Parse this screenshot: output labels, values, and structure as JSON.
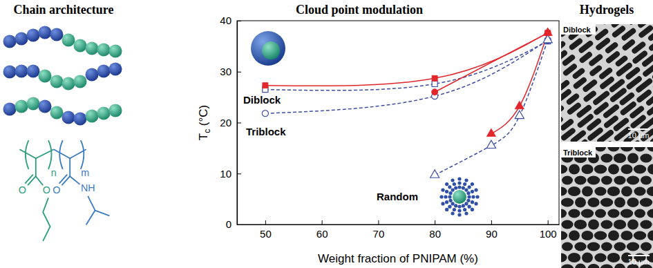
{
  "chart_data": {
    "type": "line",
    "title": "Cloud point modulation",
    "xlabel": "Weight fraction of PNIPAM (%)",
    "ylabel": {
      "text": "T",
      "subscript": "c",
      "suffix": " (°C)"
    },
    "xlim": [
      45,
      102
    ],
    "xticks": [
      50,
      60,
      70,
      80,
      90,
      100
    ],
    "ylim": [
      0,
      40
    ],
    "yticks": [
      0,
      10,
      20,
      30,
      40
    ],
    "annotations": [
      "Diblock",
      "Triblock",
      "Random"
    ],
    "series": [
      {
        "x": [
          50,
          80,
          100
        ],
        "values": [
          26.5,
          27.6,
          36.0
        ],
        "color": "#3b4ea3",
        "marker": "square-open",
        "line_style": "dashed"
      },
      {
        "x": [
          50,
          80,
          100
        ],
        "values": [
          27.3,
          28.7,
          37.6
        ],
        "color": "#e3262b",
        "marker": "square",
        "line_style": "solid"
      },
      {
        "x": [
          50,
          80,
          100
        ],
        "values": [
          21.8,
          25.2,
          36.2
        ],
        "color": "#3b4ea3",
        "marker": "circle-open",
        "line_style": "dashed"
      },
      {
        "x": [
          80,
          100
        ],
        "values": [
          26.0,
          37.6
        ],
        "color": "#e3262b",
        "marker": "circle",
        "line_style": "solid"
      },
      {
        "x": [
          80,
          90,
          95,
          100
        ],
        "values": [
          9.7,
          15.5,
          21.3,
          36.2
        ],
        "color": "#3b4ea3",
        "marker": "triangle-open",
        "line_style": "dashed"
      },
      {
        "x": [
          90,
          95,
          100
        ],
        "values": [
          17.8,
          23.2,
          37.6
        ],
        "color": "#e3262b",
        "marker": "triangle",
        "line_style": "solid"
      }
    ]
  },
  "panels": {
    "left": {
      "title": "Chain architecture",
      "structure": {
        "n": "n",
        "m": "m",
        "labels": [
          "O",
          "O",
          "O",
          "NH"
        ]
      }
    },
    "right": {
      "title": "Hydrogels",
      "images": [
        {
          "label": "Diblock",
          "scale_bar": "10 μm"
        },
        {
          "label": "Triblock",
          "scale_bar": "10 μm"
        }
      ]
    }
  }
}
